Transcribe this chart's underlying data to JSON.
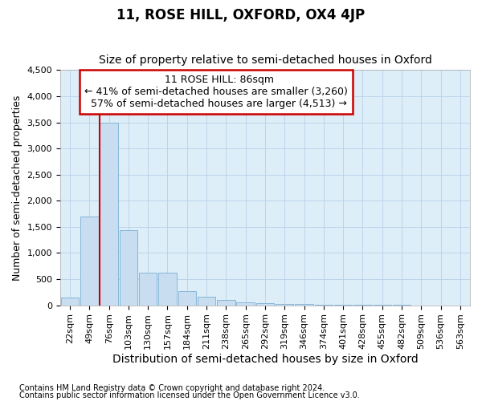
{
  "title": "11, ROSE HILL, OXFORD, OX4 4JP",
  "subtitle": "Size of property relative to semi-detached houses in Oxford",
  "xlabel": "Distribution of semi-detached houses by size in Oxford",
  "ylabel": "Number of semi-detached properties",
  "footnote1": "Contains HM Land Registry data © Crown copyright and database right 2024.",
  "footnote2": "Contains public sector information licensed under the Open Government Licence v3.0.",
  "property_label": "11 ROSE HILL: 86sqm",
  "pct_smaller": 41,
  "count_smaller": 3260,
  "pct_larger": 57,
  "count_larger": 4513,
  "bin_labels": [
    "22sqm",
    "49sqm",
    "76sqm",
    "103sqm",
    "130sqm",
    "157sqm",
    "184sqm",
    "211sqm",
    "238sqm",
    "265sqm",
    "292sqm",
    "319sqm",
    "346sqm",
    "374sqm",
    "401sqm",
    "428sqm",
    "455sqm",
    "482sqm",
    "509sqm",
    "536sqm",
    "563sqm"
  ],
  "bar_heights": [
    150,
    1700,
    3500,
    1430,
    630,
    630,
    270,
    170,
    100,
    60,
    45,
    25,
    20,
    15,
    8,
    5,
    3,
    2,
    1,
    1,
    1
  ],
  "bar_color": "#c9ddf0",
  "bar_edge_color": "#7aafd4",
  "red_line_bin_index": 2,
  "ylim": [
    0,
    4500
  ],
  "yticks": [
    0,
    500,
    1000,
    1500,
    2000,
    2500,
    3000,
    3500,
    4000,
    4500
  ],
  "grid_color": "#b8d0e8",
  "background_color": "#ddeef8",
  "annotation_box_facecolor": "#ffffff",
  "annotation_box_edgecolor": "#cc0000",
  "red_line_color": "#cc0000",
  "title_fontsize": 12,
  "subtitle_fontsize": 10,
  "tick_fontsize": 8,
  "ylabel_fontsize": 9,
  "xlabel_fontsize": 10,
  "annotation_fontsize": 9,
  "footnote_fontsize": 7
}
